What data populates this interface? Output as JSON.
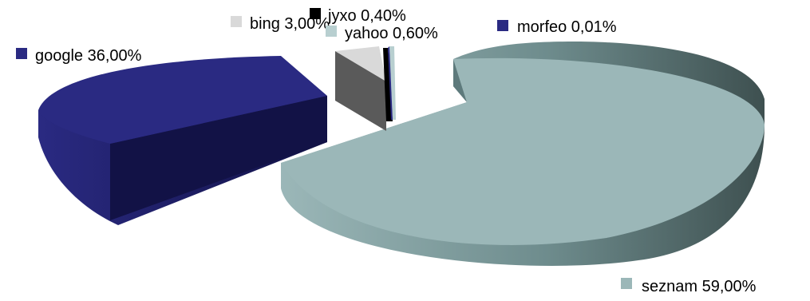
{
  "chart_data": {
    "type": "pie",
    "style": "3d-exploded",
    "title": "",
    "slices": [
      {
        "name": "seznam",
        "value": 59.0,
        "label": "seznam 59,00%",
        "color": "#9BB7B8",
        "side_color": "#5E7A7C",
        "dark_color": "#3E5050"
      },
      {
        "name": "google",
        "value": 36.0,
        "label": "google 36,00%",
        "color": "#2A2A82",
        "side_color": "#1C1C60",
        "dark_color": "#121246"
      },
      {
        "name": "bing",
        "value": 3.0,
        "label": "bing 3,00%",
        "color": "#D9D9D9",
        "side_color": "#5A5A5A",
        "dark_color": "#3C3C3C"
      },
      {
        "name": "jyxo",
        "value": 0.4,
        "label": "jyxo 0,40%",
        "color": "#000000",
        "side_color": "#000000",
        "dark_color": "#000000"
      },
      {
        "name": "yahoo",
        "value": 0.6,
        "label": "yahoo 0,60%",
        "color": "#B8CFD0",
        "side_color": "#8EA6A7",
        "dark_color": "#6E8586"
      },
      {
        "name": "morfeo",
        "value": 0.01,
        "label": "morfeo 0,01%",
        "color": "#2A2A82",
        "side_color": "#1C1C60",
        "dark_color": "#121246"
      }
    ],
    "legend_placement": "labels next to slices"
  }
}
